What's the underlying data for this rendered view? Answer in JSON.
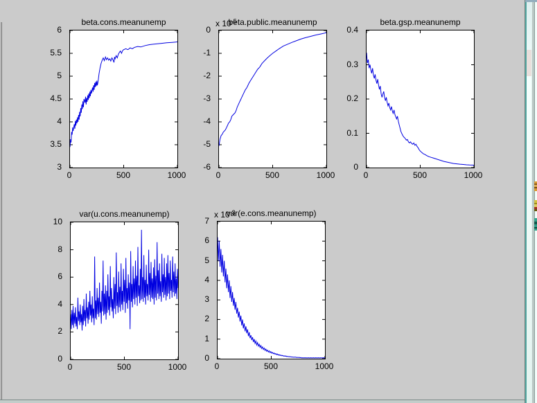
{
  "colors": {
    "figure_background": "#cbcbcb",
    "plot_background": "#ffffff",
    "axis": "#000000",
    "trace": "#0000e0"
  },
  "chart_data": [
    {
      "type": "line",
      "title": "beta.cons.meanunemp",
      "xlabel": "",
      "ylabel": "",
      "grid": false,
      "box": true,
      "legend": null,
      "xlim": [
        0,
        1000
      ],
      "ylim": [
        3,
        6
      ],
      "xticks": [
        0,
        500,
        1000
      ],
      "xticklabels": [
        "0",
        "500",
        "1000"
      ],
      "yticks": [
        3,
        3.5,
        4,
        4.5,
        5,
        5.5,
        6
      ],
      "yticklabels": [
        "3",
        "3.5",
        "4",
        "4.5",
        "5",
        "5.5",
        "6"
      ],
      "x": [
        0,
        5,
        10,
        15,
        20,
        25,
        30,
        40,
        45,
        50,
        55,
        60,
        65,
        70,
        75,
        80,
        85,
        90,
        95,
        100,
        105,
        110,
        115,
        120,
        125,
        130,
        140,
        145,
        150,
        155,
        160,
        165,
        170,
        175,
        180,
        185,
        190,
        195,
        200,
        210,
        215,
        220,
        225,
        230,
        235,
        240,
        245,
        250,
        255,
        260,
        265,
        270,
        280,
        290,
        300,
        310,
        320,
        330,
        340,
        350,
        360,
        370,
        380,
        390,
        400,
        410,
        415,
        420,
        430,
        440,
        450,
        460,
        470,
        480,
        490,
        500,
        520,
        540,
        560,
        580,
        600,
        630,
        660,
        700,
        740,
        780,
        820,
        860,
        900,
        950,
        1000
      ],
      "y": [
        3.45,
        3.62,
        3.55,
        3.78,
        3.72,
        3.88,
        3.8,
        3.95,
        3.85,
        4.02,
        3.92,
        4.05,
        3.97,
        4.1,
        4.0,
        4.15,
        4.05,
        4.22,
        4.12,
        4.3,
        4.2,
        4.38,
        4.28,
        4.45,
        4.32,
        4.5,
        4.42,
        4.55,
        4.38,
        4.52,
        4.44,
        4.58,
        4.48,
        4.62,
        4.52,
        4.66,
        4.56,
        4.7,
        4.62,
        4.75,
        4.66,
        4.8,
        4.7,
        4.85,
        4.76,
        4.88,
        4.78,
        4.9,
        4.8,
        4.86,
        4.95,
        5.05,
        5.18,
        5.28,
        5.35,
        5.4,
        5.34,
        5.42,
        5.36,
        5.4,
        5.35,
        5.38,
        5.33,
        5.4,
        5.36,
        5.3,
        5.42,
        5.38,
        5.45,
        5.4,
        5.48,
        5.52,
        5.55,
        5.5,
        5.56,
        5.58,
        5.6,
        5.58,
        5.62,
        5.6,
        5.63,
        5.65,
        5.64,
        5.67,
        5.69,
        5.7,
        5.71,
        5.72,
        5.73,
        5.74,
        5.75
      ]
    },
    {
      "type": "line",
      "title": "beta.public.meanunemp",
      "xlabel": "",
      "ylabel": "",
      "grid": false,
      "box": true,
      "legend": null,
      "exponent": {
        "base": "x 10",
        "power": "-5"
      },
      "xlim": [
        0,
        1000
      ],
      "ylim": [
        -6,
        0
      ],
      "xticks": [
        0,
        500,
        1000
      ],
      "xticklabels": [
        "0",
        "500",
        "1000"
      ],
      "yticks": [
        -6,
        -5,
        -4,
        -3,
        -2,
        -1,
        0
      ],
      "yticklabels": [
        "-6",
        "-5",
        "-4",
        "-3",
        "-2",
        "-1",
        "0"
      ],
      "x": [
        0,
        10,
        20,
        30,
        40,
        50,
        60,
        70,
        80,
        90,
        100,
        110,
        120,
        130,
        140,
        150,
        160,
        170,
        180,
        190,
        200,
        215,
        230,
        245,
        260,
        280,
        300,
        320,
        340,
        360,
        380,
        400,
        425,
        450,
        475,
        500,
        530,
        560,
        600,
        640,
        680,
        720,
        760,
        800,
        850,
        900,
        950,
        1000
      ],
      "y": [
        -5.05,
        -4.75,
        -4.6,
        -4.55,
        -4.45,
        -4.4,
        -4.35,
        -4.25,
        -4.15,
        -4.05,
        -4.0,
        -3.9,
        -3.75,
        -3.7,
        -3.65,
        -3.6,
        -3.5,
        -3.35,
        -3.25,
        -3.15,
        -3.05,
        -2.9,
        -2.75,
        -2.6,
        -2.5,
        -2.3,
        -2.15,
        -2.0,
        -1.85,
        -1.7,
        -1.6,
        -1.45,
        -1.32,
        -1.2,
        -1.1,
        -1.0,
        -0.9,
        -0.8,
        -0.68,
        -0.6,
        -0.52,
        -0.45,
        -0.38,
        -0.32,
        -0.26,
        -0.2,
        -0.15,
        -0.1
      ]
    },
    {
      "type": "line",
      "title": "beta.gsp.meanunemp",
      "xlabel": "",
      "ylabel": "",
      "grid": false,
      "box": true,
      "legend": null,
      "xlim": [
        0,
        1000
      ],
      "ylim": [
        0,
        0.4
      ],
      "xticks": [
        0,
        500,
        1000
      ],
      "xticklabels": [
        "0",
        "500",
        "1000"
      ],
      "yticks": [
        0,
        0.1,
        0.2,
        0.3,
        0.4
      ],
      "yticklabels": [
        "0",
        "0.1",
        "0.2",
        "0.3",
        "0.4"
      ],
      "x": [
        0,
        8,
        16,
        24,
        32,
        40,
        48,
        56,
        64,
        72,
        80,
        88,
        96,
        104,
        112,
        120,
        128,
        136,
        144,
        152,
        160,
        168,
        176,
        184,
        192,
        200,
        208,
        216,
        224,
        232,
        240,
        248,
        256,
        264,
        272,
        280,
        288,
        296,
        304,
        312,
        320,
        330,
        340,
        350,
        360,
        370,
        380,
        390,
        400,
        410,
        420,
        430,
        440,
        450,
        460,
        470,
        480,
        490,
        500,
        515,
        530,
        545,
        560,
        580,
        600,
        620,
        640,
        660,
        680,
        700,
        720,
        750,
        780,
        810,
        840,
        870,
        900,
        930,
        960,
        1000
      ],
      "y": [
        0.335,
        0.305,
        0.315,
        0.29,
        0.3,
        0.285,
        0.275,
        0.29,
        0.27,
        0.26,
        0.272,
        0.255,
        0.245,
        0.258,
        0.24,
        0.228,
        0.238,
        0.215,
        0.205,
        0.215,
        0.222,
        0.205,
        0.195,
        0.205,
        0.19,
        0.18,
        0.188,
        0.175,
        0.168,
        0.178,
        0.165,
        0.158,
        0.168,
        0.155,
        0.148,
        0.142,
        0.15,
        0.135,
        0.125,
        0.115,
        0.105,
        0.098,
        0.092,
        0.088,
        0.085,
        0.08,
        0.082,
        0.075,
        0.072,
        0.075,
        0.07,
        0.068,
        0.072,
        0.065,
        0.068,
        0.062,
        0.058,
        0.052,
        0.048,
        0.044,
        0.04,
        0.038,
        0.035,
        0.032,
        0.03,
        0.028,
        0.026,
        0.024,
        0.022,
        0.02,
        0.018,
        0.016,
        0.014,
        0.012,
        0.011,
        0.01,
        0.009,
        0.008,
        0.0075,
        0.007
      ]
    },
    {
      "type": "line",
      "title": "var(u.cons.meanunemp)",
      "xlabel": "",
      "ylabel": "",
      "grid": false,
      "box": true,
      "legend": null,
      "xlim": [
        0,
        1000
      ],
      "ylim": [
        0,
        10
      ],
      "xticks": [
        0,
        500,
        1000
      ],
      "xticklabels": [
        "0",
        "500",
        "1000"
      ],
      "yticks": [
        0,
        2,
        4,
        6,
        8,
        10
      ],
      "yticklabels": [
        "0",
        "2",
        "4",
        "6",
        "8",
        "10"
      ],
      "y": [
        3.3,
        2.2,
        3.6,
        2.5,
        3.9,
        2.3,
        3.4,
        2.6,
        3.8,
        2.4,
        3.1,
        2.2,
        4.5,
        2.8,
        3.5,
        2.5,
        4.0,
        2.7,
        3.3,
        2.1,
        3.9,
        2.5,
        4.4,
        2.8,
        3.6,
        2.4,
        4.8,
        3.0,
        3.8,
        2.6,
        4.2,
        2.9,
        5.0,
        3.2,
        4.0,
        2.7,
        4.6,
        3.0,
        3.7,
        2.5,
        7.5,
        3.0,
        4.3,
        2.9,
        5.2,
        3.3,
        4.5,
        3.1,
        5.6,
        3.4,
        4.2,
        2.6,
        5.0,
        3.5,
        7.2,
        3.2,
        4.8,
        3.3,
        5.4,
        2.9,
        5.0,
        3.4,
        6.2,
        3.6,
        4.6,
        3.2,
        6.8,
        3.8,
        5.2,
        3.5,
        4.4,
        3.0,
        6.0,
        3.7,
        5.5,
        3.3,
        7.8,
        3.9,
        4.9,
        3.4,
        6.4,
        3.8,
        5.3,
        3.5,
        7.0,
        4.0,
        5.0,
        3.6,
        6.6,
        4.2,
        5.8,
        3.4,
        7.4,
        4.1,
        5.2,
        3.7,
        6.2,
        4.3,
        5.6,
        2.2,
        7.9,
        4.2,
        5.5,
        3.8,
        6.8,
        4.4,
        5.9,
        4.0,
        7.2,
        4.5,
        6.1,
        3.9,
        8.2,
        4.6,
        5.4,
        4.1,
        6.6,
        4.3,
        9.45,
        4.4,
        6.0,
        4.2,
        7.6,
        4.5,
        5.8,
        4.0,
        6.9,
        4.6,
        5.5,
        4.3,
        8.0,
        4.7,
        6.3,
        4.2,
        7.1,
        4.5,
        5.9,
        4.4,
        6.7,
        4.0,
        7.3,
        4.5,
        6.1,
        4.3,
        8.55,
        4.8,
        6.5,
        4.4,
        7.0,
        4.6,
        5.7,
        4.2,
        7.7,
        4.9,
        6.2,
        4.5,
        7.4,
        4.7,
        6.0,
        4.3,
        7.0,
        4.6,
        7.6,
        4.8,
        6.3,
        4.4,
        7.2,
        5.0,
        5.8,
        4.5,
        7.5,
        4.9,
        6.4,
        4.6,
        7.0,
        4.8,
        5.9,
        4.4,
        6.6,
        5.2
      ]
    },
    {
      "type": "line",
      "title": "var(e.cons.meanunemp)",
      "xlabel": "",
      "ylabel": "",
      "grid": false,
      "box": true,
      "legend": null,
      "exponent": {
        "base": "x 10",
        "power": "-3"
      },
      "xlim": [
        0,
        1000
      ],
      "ylim": [
        0,
        7
      ],
      "xticks": [
        0,
        500,
        1000
      ],
      "xticklabels": [
        "0",
        "500",
        "1000"
      ],
      "yticks": [
        0,
        1,
        2,
        3,
        4,
        5,
        6,
        7
      ],
      "yticklabels": [
        "0",
        "1",
        "2",
        "3",
        "4",
        "5",
        "6",
        "7"
      ],
      "y": [
        6.2,
        5.0,
        6.0,
        4.7,
        5.6,
        4.4,
        5.3,
        4.2,
        5.0,
        3.9,
        4.6,
        3.6,
        4.3,
        3.4,
        4.0,
        3.1,
        3.7,
        2.9,
        3.4,
        2.7,
        3.1,
        2.5,
        2.9,
        2.3,
        2.6,
        2.1,
        2.4,
        1.9,
        2.2,
        1.7,
        2.0,
        1.55,
        1.8,
        1.4,
        1.65,
        1.3,
        1.5,
        1.15,
        1.35,
        1.05,
        1.2,
        0.95,
        1.1,
        0.85,
        1.0,
        0.78,
        0.9,
        0.7,
        0.82,
        0.64,
        0.74,
        0.58,
        0.67,
        0.52,
        0.6,
        0.47,
        0.54,
        0.42,
        0.49,
        0.38,
        0.44,
        0.34,
        0.4,
        0.31,
        0.36,
        0.28,
        0.32,
        0.25,
        0.29,
        0.23,
        0.26,
        0.2,
        0.24,
        0.18,
        0.21,
        0.16,
        0.19,
        0.15,
        0.17,
        0.13,
        0.15,
        0.12,
        0.14,
        0.11,
        0.12,
        0.1,
        0.11,
        0.09,
        0.1,
        0.08,
        0.09,
        0.07,
        0.08,
        0.07,
        0.08,
        0.06,
        0.07,
        0.06,
        0.07,
        0.05,
        0.06,
        0.04,
        0.05,
        0.04,
        0.05,
        0.04,
        0.05,
        0.04,
        0.04,
        0.05,
        0.04,
        0.04,
        0.05,
        0.04,
        0.04,
        0.05,
        0.04,
        0.04,
        0.05,
        0.04,
        0.04,
        0.05,
        0.04,
        0.04,
        0.05,
        0.04,
        0.04,
        0.05,
        0.04,
        0.04
      ]
    }
  ],
  "right_edge_window": {
    "description_visible": "",
    "icons": [
      {
        "name": "partially-visible-icon-1"
      },
      {
        "name": "partially-visible-icon-2"
      },
      {
        "name": "partially-visible-icon-3"
      }
    ]
  }
}
